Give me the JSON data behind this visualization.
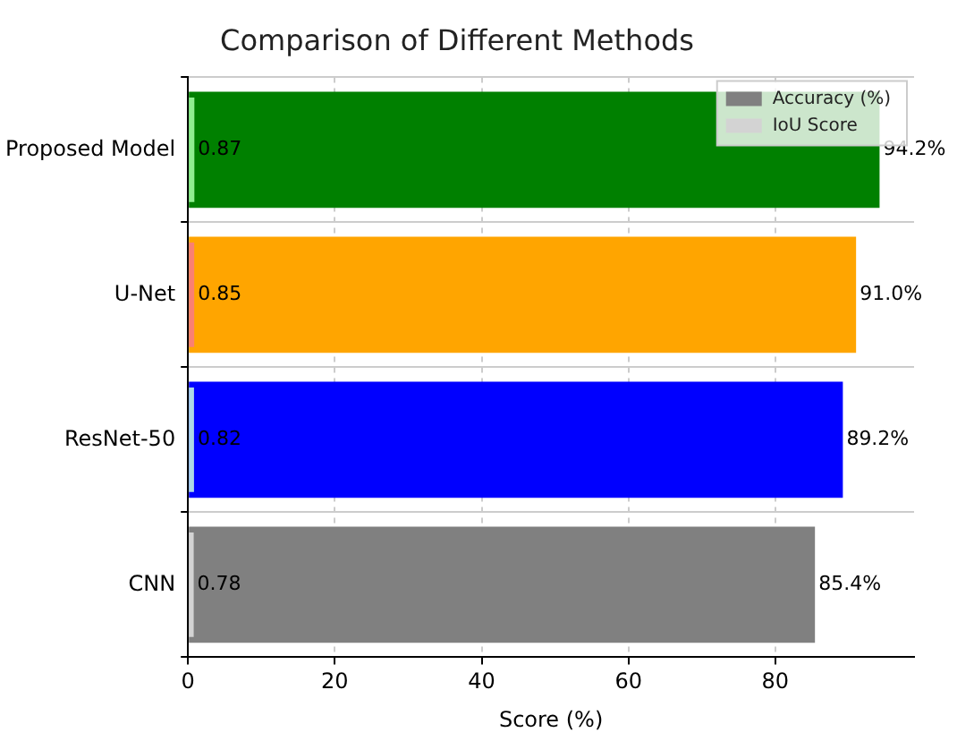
{
  "chart_data": {
    "type": "bar",
    "orientation": "horizontal",
    "title": "Comparison of Different Methods",
    "xlabel": "Score (%)",
    "categories": [
      "Proposed Model",
      "U-Net",
      "ResNet-50",
      "CNN"
    ],
    "series": [
      {
        "name": "Accuracy (%)",
        "color": "#808080",
        "colors": [
          "#008000",
          "#ffa500",
          "#0000ff",
          "#808080"
        ],
        "values": [
          94.2,
          91.0,
          89.2,
          85.4
        ],
        "value_labels": [
          "94.2%",
          "91.0%",
          "89.2%",
          "85.4%"
        ]
      },
      {
        "name": "IoU Score",
        "color": "#d3d3d3",
        "colors": [
          "#90ee90",
          "#fa8072",
          "#add8e6",
          "#d3d3d3"
        ],
        "values": [
          0.87,
          0.85,
          0.82,
          0.78
        ],
        "value_labels": [
          "0.87",
          "0.85",
          "0.82",
          "0.78"
        ]
      }
    ],
    "xlim": [
      0,
      98.9
    ],
    "xticks": [
      0,
      20,
      40,
      60,
      80
    ],
    "grid": true,
    "legend": "top right"
  }
}
